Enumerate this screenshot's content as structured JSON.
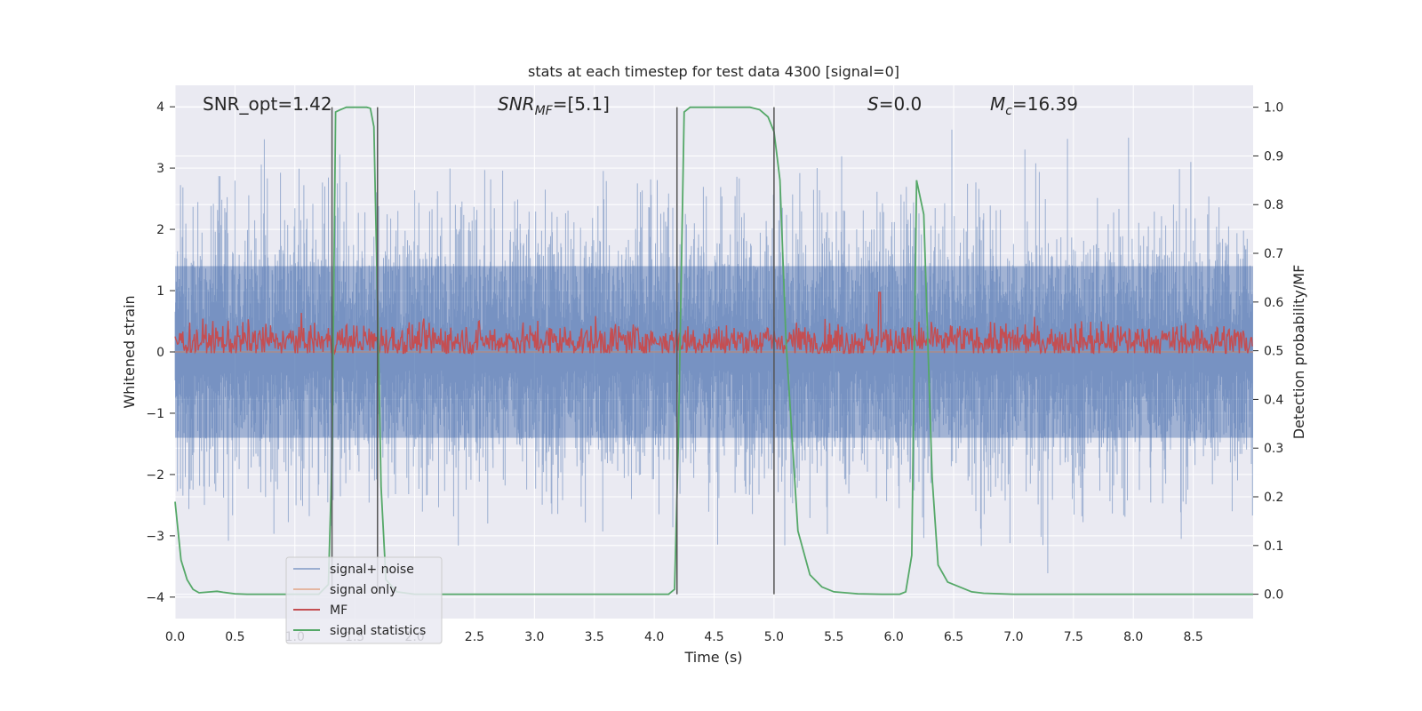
{
  "chart_data": {
    "type": "line",
    "title": "stats at each timestep for test data 4300 [signal=0]",
    "xlabel": "Time (s)",
    "ylabel": "Whitened strain",
    "y2label": "Detection probability/MF",
    "xlim": [
      0,
      9.0
    ],
    "ylim": [
      -4.35,
      4.35
    ],
    "y2lim": [
      -0.05,
      1.045
    ],
    "xticks": [
      0.0,
      0.5,
      1.0,
      1.5,
      2.0,
      2.5,
      3.0,
      3.5,
      4.0,
      4.5,
      5.0,
      5.5,
      6.0,
      6.5,
      7.0,
      7.5,
      8.0,
      8.5
    ],
    "xtick_labels": [
      "0.0",
      "0.5",
      "1.0",
      "1.5",
      "2.0",
      "2.5",
      "3.0",
      "3.5",
      "4.0",
      "4.5",
      "5.0",
      "5.5",
      "6.0",
      "6.5",
      "7.0",
      "7.5",
      "8.0",
      "8.5"
    ],
    "yticks": [
      4,
      3,
      2,
      1,
      0,
      -1,
      -2,
      -3,
      -4
    ],
    "ytick_labels": [
      "4",
      "3",
      "2",
      "1",
      "0",
      "−1",
      "−2",
      "−3",
      "−4"
    ],
    "y2ticks": [
      1.0,
      0.9,
      0.8,
      0.7,
      0.6,
      0.5,
      0.4,
      0.3,
      0.2,
      0.1,
      0.0
    ],
    "y2tick_labels": [
      "1.0",
      "0.9",
      "0.8",
      "0.7",
      "0.6",
      "0.5",
      "0.4",
      "0.3",
      "0.2",
      "0.1",
      "0.0"
    ],
    "grid": true,
    "annotations": {
      "snr_opt": "SNR_opt=1.42",
      "snr_mf_main": "SNR",
      "snr_mf_sub": "MF",
      "snr_mf_value": "=[5.1]",
      "s_main": "S",
      "s_value": "=0.0",
      "mc_main": "M",
      "mc_sub": "c",
      "mc_value": "=16.39"
    },
    "vertical_lines_x": [
      1.31,
      1.69,
      4.19,
      5.0
    ],
    "series": [
      {
        "name": "signal+ noise",
        "color": "#4c72b0",
        "kind": "noise",
        "amplitude_range": [
          -3.9,
          3.9
        ],
        "typical_envelope": [
          -2.4,
          2.4
        ]
      },
      {
        "name": "signal only",
        "color": "#dd8452",
        "kind": "flat",
        "value": 0.0
      },
      {
        "name": "MF",
        "color": "#c44e52",
        "kind": "noise",
        "axis": "y2",
        "baseline": 0.52,
        "typical_range": [
          0.5,
          0.56
        ],
        "peak": 0.62
      },
      {
        "name": "signal statistics",
        "color": "#55a868",
        "axis": "y2",
        "x": [
          0.0,
          0.05,
          0.1,
          0.15,
          0.2,
          0.3,
          0.35,
          0.4,
          0.5,
          0.6,
          0.8,
          1.0,
          1.2,
          1.28,
          1.31,
          1.34,
          1.38,
          1.43,
          1.5,
          1.6,
          1.63,
          1.66,
          1.69,
          1.72,
          1.76,
          1.85,
          2.0,
          2.5,
          3.0,
          3.5,
          4.0,
          4.12,
          4.17,
          4.2,
          4.25,
          4.3,
          4.4,
          4.6,
          4.8,
          4.88,
          4.95,
          5.0,
          5.05,
          5.1,
          5.2,
          5.3,
          5.4,
          5.5,
          5.7,
          5.9,
          6.05,
          6.1,
          6.15,
          6.19,
          6.25,
          6.28,
          6.32,
          6.37,
          6.45,
          6.55,
          6.65,
          6.75,
          7.0,
          8.0,
          9.0
        ],
        "y": [
          0.19,
          0.07,
          0.03,
          0.01,
          0.003,
          0.005,
          0.006,
          0.004,
          0.001,
          0.0,
          0.0,
          0.0,
          0.0,
          0.02,
          0.28,
          0.99,
          0.995,
          1.0,
          1.0,
          1.0,
          0.998,
          0.96,
          0.6,
          0.22,
          0.03,
          0.005,
          0.0,
          0.0,
          0.0,
          0.0,
          0.0,
          0.0,
          0.01,
          0.3,
          0.99,
          1.0,
          1.0,
          1.0,
          1.0,
          0.995,
          0.98,
          0.95,
          0.85,
          0.52,
          0.13,
          0.04,
          0.015,
          0.005,
          0.001,
          0.0,
          0.0,
          0.005,
          0.08,
          0.85,
          0.78,
          0.55,
          0.24,
          0.06,
          0.025,
          0.015,
          0.005,
          0.002,
          0.0,
          0.0,
          0.0
        ]
      }
    ],
    "legend": {
      "location": "lower-left",
      "entries": [
        "signal+ noise",
        "signal only",
        "MF",
        "signal statistics"
      ]
    }
  }
}
